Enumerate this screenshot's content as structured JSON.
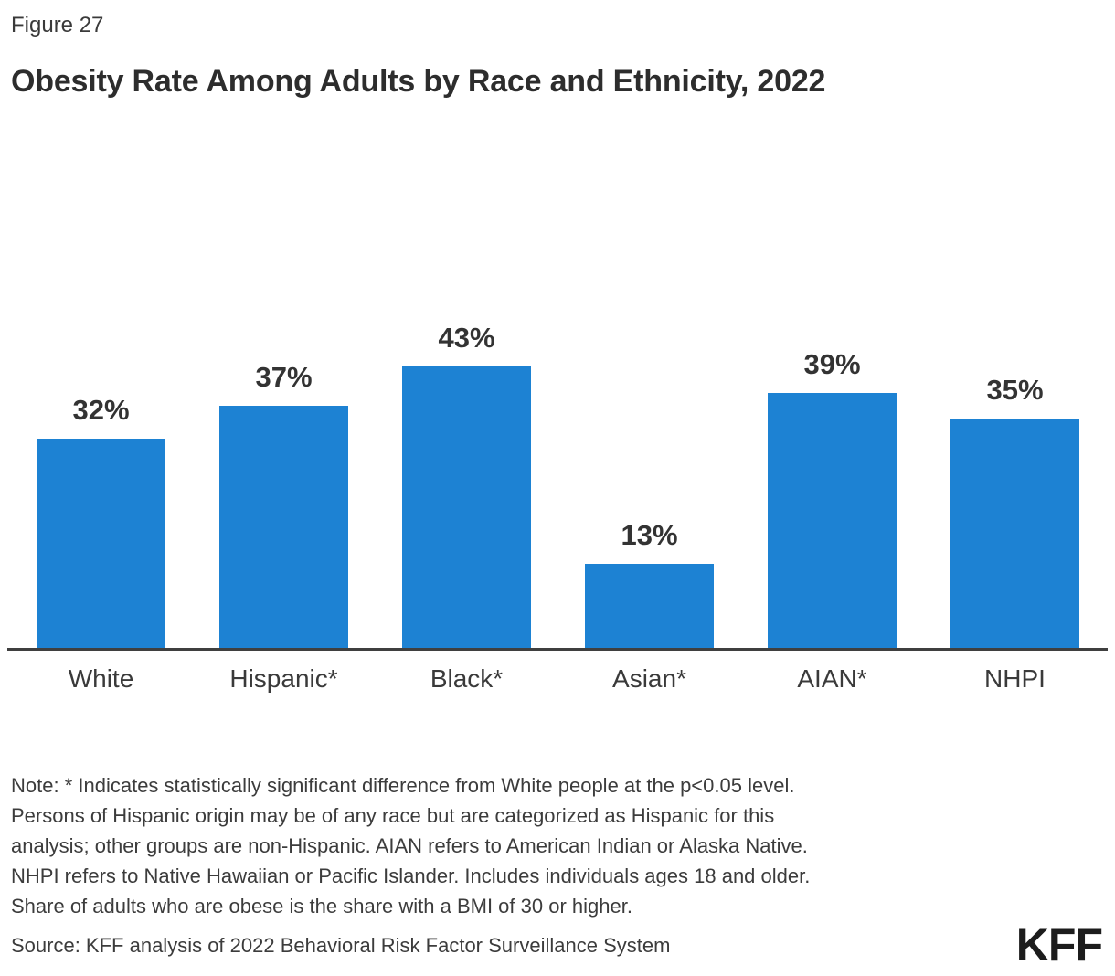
{
  "figure_label": "Figure 27",
  "title": "Obesity Rate Among Adults by Race and Ethnicity, 2022",
  "chart_data": {
    "type": "bar",
    "categories": [
      "White",
      "Hispanic*",
      "Black*",
      "Asian*",
      "AIAN*",
      "NHPI"
    ],
    "values": [
      32,
      37,
      43,
      13,
      39,
      35
    ],
    "value_labels": [
      "32%",
      "37%",
      "43%",
      "13%",
      "39%",
      "35%"
    ],
    "title": "Obesity Rate Among Adults by Race and Ethnicity, 2022",
    "xlabel": "",
    "ylabel": "",
    "ylim": [
      0,
      50
    ],
    "grid": false,
    "legend": "none",
    "bar_color": "#1d82d3",
    "axis_line_color": "#3f3f3f"
  },
  "note": "Note: * Indicates statistically significant difference from White people at the p<0.05 level.\nPersons of Hispanic origin may be of any race but are categorized as Hispanic for this\nanalysis; other groups are non-Hispanic. AIAN refers to American Indian or Alaska Native.\nNHPI refers to Native Hawaiian or Pacific Islander. Includes individuals ages 18 and older.\nShare of adults who are obese is the share with a BMI of 30 or higher.",
  "source": "Source: KFF analysis of 2022 Behavioral Risk Factor Surveillance System",
  "logo_text": "KFF"
}
